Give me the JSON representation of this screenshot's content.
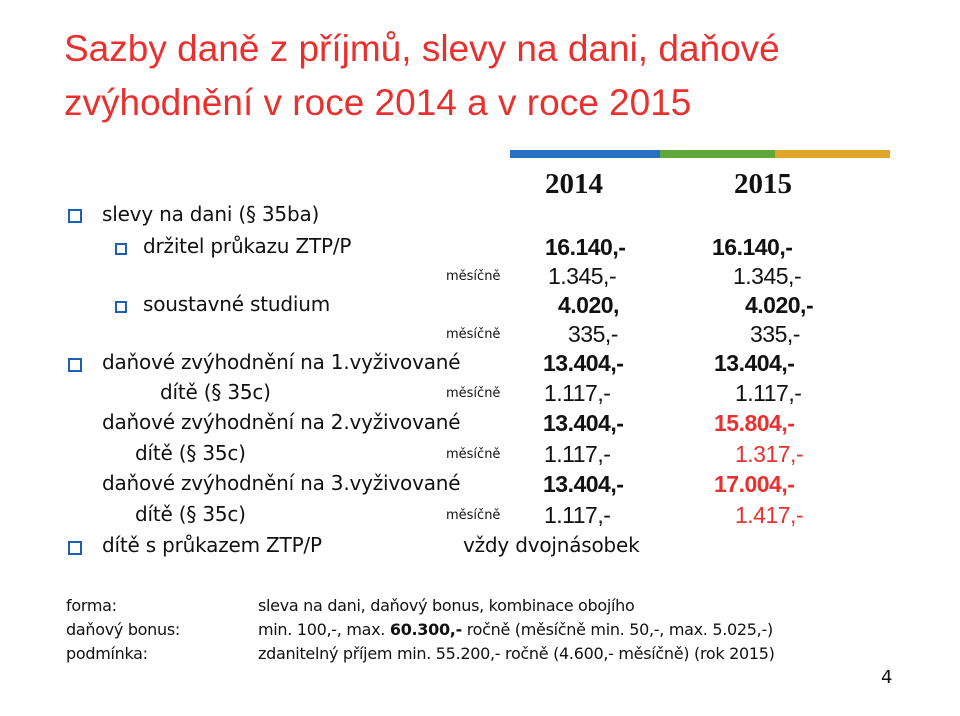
{
  "slide": {
    "title_line1": "Sazby daně z příjmů, slevy na dani, daňové",
    "title_line2": "zvýhodnění v roce 2014 a v roce 2015",
    "colors": {
      "title": "#e8312f",
      "bullet": "#1d5fb4",
      "highlight": "#e8312f",
      "accent_bar": [
        "#2a70c0",
        "#5ea83a",
        "#e0a52a"
      ]
    }
  },
  "table": {
    "year_2014": "2014",
    "year_2015": "2015",
    "rows": [
      {
        "label": "slevy na dani  (§ 35ba)"
      },
      {
        "label": "držitel průkazu ZTP/P",
        "v2014": "16.140,-",
        "v2015": "16.140,-"
      },
      {
        "label": "měsíčně",
        "v2014": "1.345,-",
        "v2015": "1.345,-"
      },
      {
        "label": "soustavné studium",
        "v2014": "4.020,",
        "v2015": "4.020,-"
      },
      {
        "label": "měsíčně",
        "v2014": "335,-",
        "v2015": "335,-"
      },
      {
        "label": "daňové zvýhodnění na 1.vyživované",
        "v2014": "13.404,-",
        "v2015": "13.404,-"
      },
      {
        "label": "dítě  (§ 35c)",
        "sub": "měsíčně",
        "v2014": "1.117,-",
        "v2015": "1.117,-"
      },
      {
        "label": "daňové zvýhodnění na 2.vyživované",
        "v2014": "13.404,-",
        "v2015": "15.804,-"
      },
      {
        "label": "dítě  (§ 35c)",
        "sub": "měsíčně",
        "v2014": "1.117,-",
        "v2015": "1.317,-"
      },
      {
        "label": "daňové zvýhodnění na 3.vyživované",
        "v2014": "13.404,-",
        "v2015": "17.004,-"
      },
      {
        "label": "dítě  (§ 35c)",
        "sub": "měsíčně",
        "v2014": "1.117,-",
        "v2015": "1.417,-"
      },
      {
        "label": "dítě s průkazem ZTP/P",
        "both": "vždy dvojnásobek"
      }
    ]
  },
  "footer": {
    "forma_label": "forma:",
    "forma_value": "sleva na dani, daňový bonus, kombinace obojího",
    "bonus_label": "daňový bonus:",
    "bonus_value_a": "min. 100,-,  max. ",
    "bonus_value_b": "60.300,-",
    "bonus_value_c": " ročně (měsíčně min. 50,-, max. 5.025,-)",
    "podminka_label": "podmínka:",
    "podminka_value": "zdanitelný příjem min. 55.200,- ročně (4.600,- měsíčně) (rok 2015)"
  },
  "page_number": "4"
}
